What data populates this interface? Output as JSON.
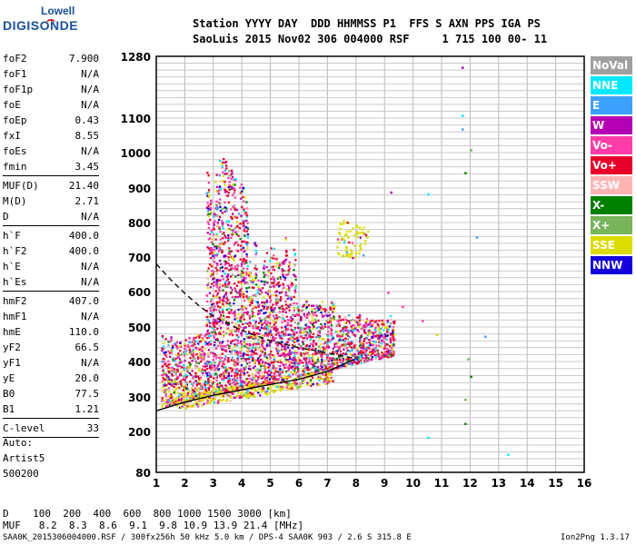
{
  "logo": {
    "line1": "Lowell",
    "line2": "DIGISONDE"
  },
  "header": {
    "row1": "Station YYYY DAY  DDD HHMMSS P1  FFS S AXN PPS IGA PS",
    "row2": "SaoLuis 2015 Nov02 306 004000 RSF     1 715 100 00- 11"
  },
  "params": [
    {
      "name": "foF2",
      "value": "7.900"
    },
    {
      "name": "foF1",
      "value": "N/A"
    },
    {
      "name": "foF1p",
      "value": "N/A"
    },
    {
      "name": "foE",
      "value": "N/A"
    },
    {
      "name": "foEp",
      "value": "0.43"
    },
    {
      "name": "fxI",
      "value": "8.55"
    },
    {
      "name": "foEs",
      "value": "N/A"
    },
    {
      "name": "fmin",
      "value": "3.45"
    },
    {
      "name": "MUF(D)",
      "value": "21.40"
    },
    {
      "name": "M(D)",
      "value": "2.71"
    },
    {
      "name": "D",
      "value": "N/A"
    },
    {
      "name": "h`F",
      "value": "400.0"
    },
    {
      "name": "h`F2",
      "value": "400.0"
    },
    {
      "name": "h`E",
      "value": "N/A"
    },
    {
      "name": "h`Es",
      "value": "N/A"
    },
    {
      "name": "hmF2",
      "value": "407.0"
    },
    {
      "name": "hmF1",
      "value": "N/A"
    },
    {
      "name": "hmE",
      "value": "110.0"
    },
    {
      "name": "yF2",
      "value": "66.5"
    },
    {
      "name": "yF1",
      "value": "N/A"
    },
    {
      "name": "yE",
      "value": "20.0"
    },
    {
      "name": "B0",
      "value": "77.5"
    },
    {
      "name": "B1",
      "value": "1.21"
    },
    {
      "name": "C-level",
      "value": "33"
    }
  ],
  "auto": {
    "line1": "Auto:",
    "line2": "Artist5",
    "line3": "500200"
  },
  "legend": [
    {
      "label": "NoVal",
      "color": "#a0a0a0"
    },
    {
      "label": "NNE",
      "color": "#00e8ff"
    },
    {
      "label": "E",
      "color": "#3ca0ff"
    },
    {
      "label": "W",
      "color": "#b400b4"
    },
    {
      "label": "Vo-",
      "color": "#ff3ca8"
    },
    {
      "label": "Vo+",
      "color": "#e8002a"
    },
    {
      "label": "SSW",
      "color": "#ffb4b4"
    },
    {
      "label": "X-",
      "color": "#008000"
    },
    {
      "label": "X+",
      "color": "#78b45a"
    },
    {
      "label": "SSE",
      "color": "#dcdc00"
    },
    {
      "label": "NNW",
      "color": "#1400dc"
    }
  ],
  "bottom": {
    "d_row": "D    100  200  400  600  800 1000 1500 3000 [km]",
    "muf_row": "MUF   8.2  8.3  8.6  9.1  9.8 10.9 13.9 21.4 [MHz]"
  },
  "footer": {
    "left": "SAA0K_2015306004000.RSF / 300fx256h 50 kHz 5.0 km / DPS-4 SAA0K 903 / 2.6 S 315.8 E",
    "right": "Ion2Png 1.3.17"
  },
  "chart_data": {
    "type": "scatter",
    "title": "",
    "xlabel": "",
    "ylabel": "",
    "xlim": [
      1,
      16
    ],
    "ylim": [
      80,
      1280
    ],
    "x_ticks": [
      1,
      2,
      3,
      4,
      5,
      6,
      7,
      8,
      9,
      10,
      11,
      12,
      13,
      14,
      15,
      16
    ],
    "y_ticks": [
      80,
      200,
      300,
      400,
      500,
      600,
      700,
      800,
      900,
      1000,
      1100,
      1280
    ],
    "grid": true,
    "legend_position": "right",
    "series": [
      {
        "name": "NNE",
        "points": [
          [
            10.5,
            885
          ],
          [
            11.7,
            1110
          ],
          [
            13.3,
            135
          ],
          [
            10.5,
            185
          ]
        ]
      },
      {
        "name": "E",
        "points": [
          [
            11.7,
            1070
          ],
          [
            12.2,
            760
          ],
          [
            12.5,
            475
          ]
        ]
      },
      {
        "name": "W",
        "points": [
          [
            11.7,
            1250
          ],
          [
            9.2,
            890
          ],
          [
            8.4,
            510
          ]
        ]
      },
      {
        "name": "Vo-",
        "points": [
          [
            9.1,
            600
          ],
          [
            9.6,
            560
          ],
          [
            10.3,
            520
          ]
        ]
      },
      {
        "name": "Vo+",
        "points": [
          [
            8.2,
            430
          ],
          [
            7.6,
            470
          ]
        ]
      },
      {
        "name": "X-",
        "points": [
          [
            11.8,
            945
          ],
          [
            11.8,
            225
          ],
          [
            12.0,
            360
          ]
        ]
      },
      {
        "name": "X+",
        "points": [
          [
            12.0,
            1010
          ],
          [
            11.8,
            295
          ],
          [
            11.9,
            410
          ]
        ]
      },
      {
        "name": "SSE",
        "points": [
          [
            7.7,
            760
          ],
          [
            8.0,
            790
          ],
          [
            10.8,
            480
          ]
        ]
      }
    ],
    "ordinary_trace": [
      [
        1.0,
        260
      ],
      [
        2.0,
        285
      ],
      [
        3.0,
        305
      ],
      [
        4.0,
        320
      ],
      [
        5.0,
        335
      ],
      [
        6.0,
        350
      ],
      [
        7.0,
        372
      ],
      [
        7.9,
        405
      ]
    ],
    "profile_curve": [
      [
        1.0,
        680
      ],
      [
        1.5,
        635
      ],
      [
        2.0,
        595
      ],
      [
        2.5,
        560
      ],
      [
        3.0,
        530
      ],
      [
        4.0,
        490
      ],
      [
        5.0,
        460
      ],
      [
        6.0,
        440
      ],
      [
        7.0,
        425
      ],
      [
        7.9,
        410
      ]
    ]
  }
}
